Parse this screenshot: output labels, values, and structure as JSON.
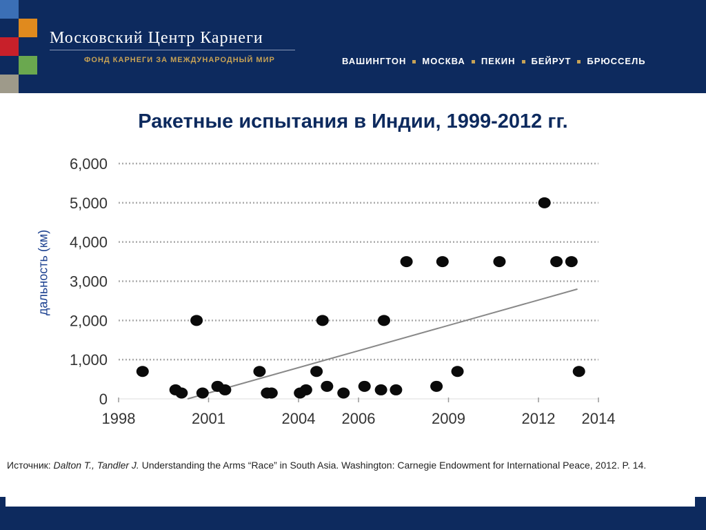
{
  "header": {
    "org_name": "Московский Центр Карнеги",
    "org_subtitle": "ФОНД КАРНЕГИ ЗА МЕЖДУНАРОДНЫЙ МИР",
    "cities": [
      "ВАШИНГТОН",
      "МОСКВА",
      "ПЕКИН",
      "БЕЙРУТ",
      "БРЮССЕЛЬ"
    ],
    "colors": {
      "navy": "#0d2a5e",
      "gold": "#c7a255",
      "orange": "#e08a1e",
      "red": "#c8202a",
      "green": "#6aa84f",
      "gray": "#9e9a8a",
      "blue": "#3b6fb6"
    }
  },
  "chart_data": {
    "type": "scatter",
    "title": "Ракетные испытания в Индии, 1999-2012 гг.",
    "ylabel": "дальность (км)",
    "xlabel": "",
    "xlim": [
      1998,
      2014
    ],
    "ylim": [
      0,
      6000
    ],
    "x_ticks": [
      1998,
      2001,
      2004,
      2006,
      2009,
      2012,
      2014
    ],
    "x_tick_labels": [
      "1998",
      "2001",
      "2004",
      "2006",
      "2009",
      "2012",
      "2014"
    ],
    "y_ticks": [
      0,
      1000,
      2000,
      3000,
      4000,
      5000,
      6000
    ],
    "y_tick_labels": [
      "0",
      "1,000",
      "2,000",
      "3,000",
      "4,000",
      "5,000",
      "6,000"
    ],
    "grid": "horizontal-dotted",
    "points": [
      {
        "x": 1998.8,
        "y": 700
      },
      {
        "x": 1999.9,
        "y": 230
      },
      {
        "x": 2000.1,
        "y": 150
      },
      {
        "x": 2000.6,
        "y": 2000
      },
      {
        "x": 2000.8,
        "y": 150
      },
      {
        "x": 2001.3,
        "y": 320
      },
      {
        "x": 2001.55,
        "y": 230
      },
      {
        "x": 2002.7,
        "y": 700
      },
      {
        "x": 2002.95,
        "y": 150
      },
      {
        "x": 2003.1,
        "y": 150
      },
      {
        "x": 2004.05,
        "y": 150
      },
      {
        "x": 2004.25,
        "y": 230
      },
      {
        "x": 2004.6,
        "y": 700
      },
      {
        "x": 2004.8,
        "y": 2000
      },
      {
        "x": 2004.95,
        "y": 320
      },
      {
        "x": 2005.5,
        "y": 150
      },
      {
        "x": 2006.2,
        "y": 320
      },
      {
        "x": 2006.75,
        "y": 230
      },
      {
        "x": 2006.85,
        "y": 2000
      },
      {
        "x": 2007.25,
        "y": 230
      },
      {
        "x": 2007.6,
        "y": 3500
      },
      {
        "x": 2008.6,
        "y": 320
      },
      {
        "x": 2008.8,
        "y": 3500
      },
      {
        "x": 2009.3,
        "y": 700
      },
      {
        "x": 2010.7,
        "y": 3500
      },
      {
        "x": 2012.2,
        "y": 5000
      },
      {
        "x": 2012.6,
        "y": 3500
      },
      {
        "x": 2013.1,
        "y": 3500
      },
      {
        "x": 2013.35,
        "y": 700
      }
    ],
    "trendline": {
      "x": [
        2000.3,
        2013.3
      ],
      "y": [
        0,
        2800
      ]
    }
  },
  "source": {
    "prefix": "Источник: ",
    "authors": "Dalton T., Tandler J.",
    "text": " Understanding the Arms “Race” in South Asia. Washington: Carnegie Endowment for International Peace, 2012. P. 14."
  }
}
